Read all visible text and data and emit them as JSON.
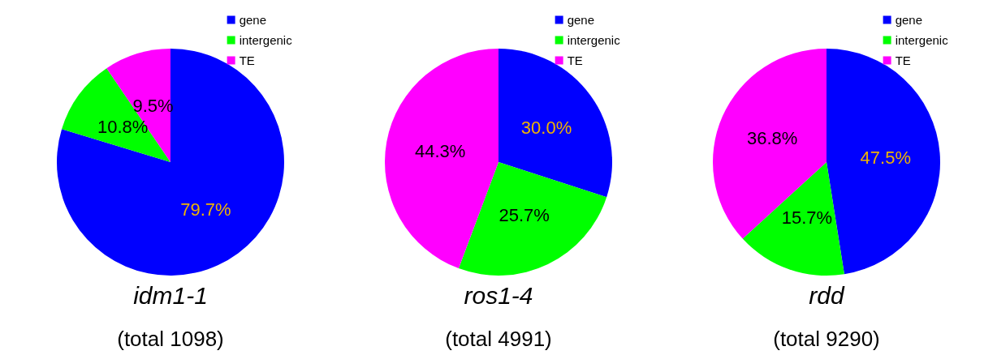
{
  "chart_data": [
    {
      "type": "pie",
      "title": "idm1-1",
      "subtitle": "(total 1098)",
      "categories": [
        "gene",
        "intergenic",
        "TE"
      ],
      "values": [
        79.7,
        10.8,
        9.5
      ],
      "value_labels": [
        "79.7%",
        "10.8%",
        "9.5%"
      ],
      "colors": [
        "#0000ff",
        "#00ff00",
        "#ff00ff"
      ],
      "legend": "top right"
    },
    {
      "type": "pie",
      "title": "ros1-4",
      "subtitle": "(total 4991)",
      "categories": [
        "gene",
        "intergenic",
        "TE"
      ],
      "values": [
        30.0,
        25.7,
        44.3
      ],
      "value_labels": [
        "30.0%",
        "25.7%",
        "44.3%"
      ],
      "colors": [
        "#0000ff",
        "#00ff00",
        "#ff00ff"
      ],
      "legend": "top right"
    },
    {
      "type": "pie",
      "title": "rdd",
      "subtitle": "(total 9290)",
      "categories": [
        "gene",
        "intergenic",
        "TE"
      ],
      "values": [
        47.5,
        15.7,
        36.8
      ],
      "value_labels": [
        "47.5%",
        "15.7%",
        "36.8%"
      ],
      "colors": [
        "#0000ff",
        "#00ff00",
        "#ff00ff"
      ],
      "legend": "top right"
    }
  ]
}
